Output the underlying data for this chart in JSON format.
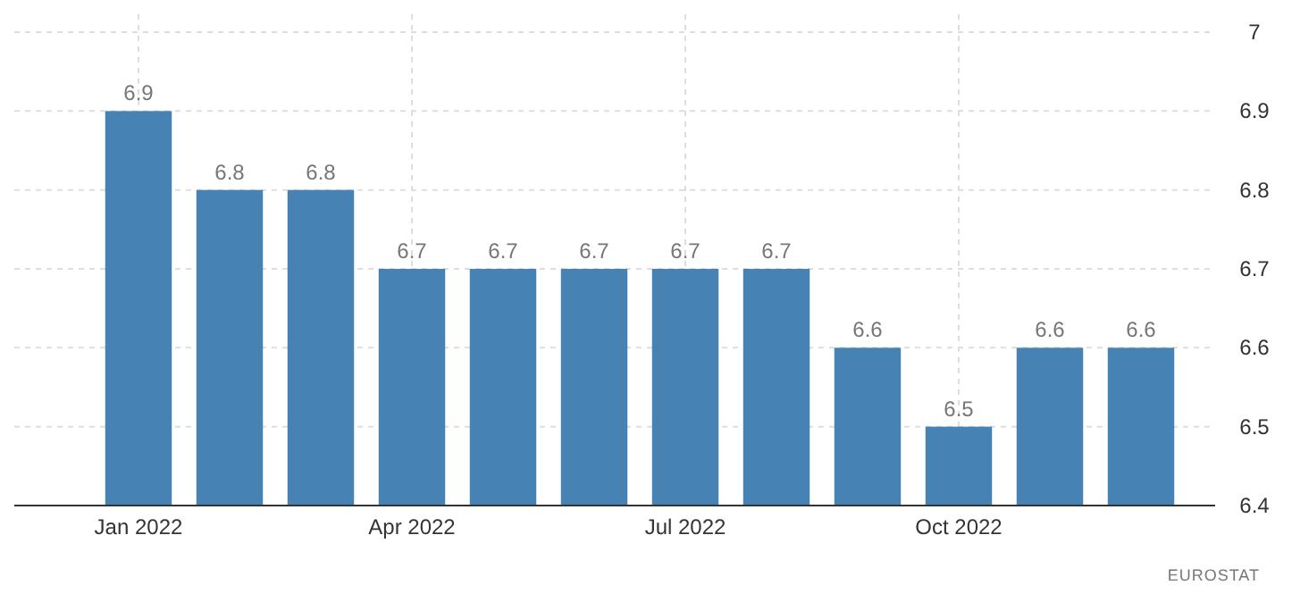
{
  "chart_data": {
    "type": "bar",
    "categories": [
      "Jan 2022",
      null,
      null,
      "Apr 2022",
      null,
      null,
      "Jul 2022",
      null,
      null,
      "Oct 2022",
      null,
      null
    ],
    "values": [
      6.9,
      6.8,
      6.8,
      6.7,
      6.7,
      6.7,
      6.7,
      6.7,
      6.6,
      6.5,
      6.6,
      6.6
    ],
    "color": "#4682b4",
    "ylim": [
      6.4,
      7
    ],
    "yticks": [
      6.4,
      6.5,
      6.6,
      6.7,
      6.8,
      6.9,
      7
    ],
    "grid": true,
    "data_labels": true,
    "annotations": [
      "EUROSTAT"
    ]
  }
}
